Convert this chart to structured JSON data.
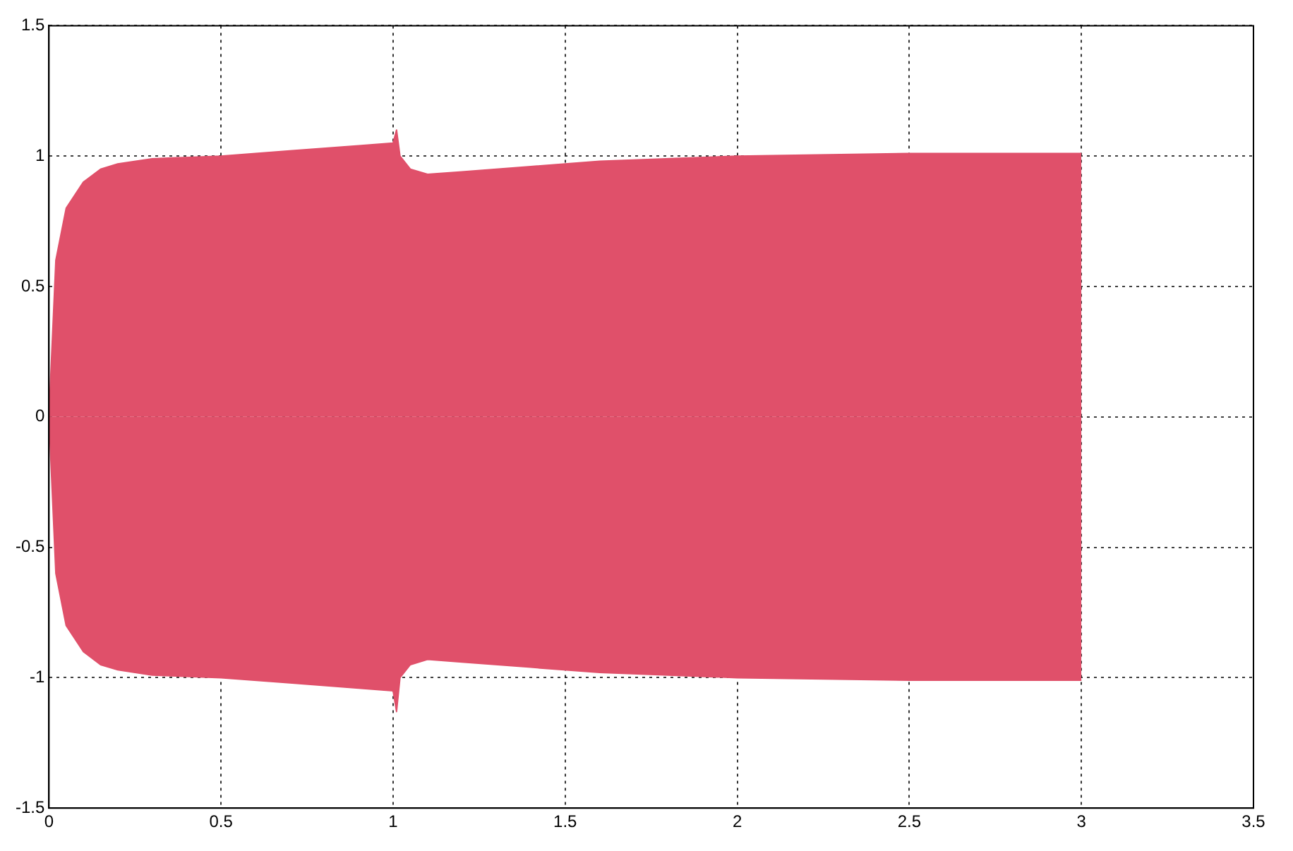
{
  "chart_data": {
    "type": "area",
    "x": [
      0,
      0.02,
      0.05,
      0.1,
      0.15,
      0.2,
      0.3,
      0.5,
      0.7,
      0.9,
      1.0,
      1.01,
      1.02,
      1.05,
      1.1,
      1.2,
      1.4,
      1.6,
      2.0,
      2.5,
      3.0
    ],
    "series": [
      {
        "color": "#e0506a",
        "values": [
          0,
          0.6,
          0.8,
          0.9,
          0.95,
          0.97,
          0.99,
          1.0,
          1.02,
          1.04,
          1.05,
          1.1,
          1.0,
          0.95,
          0.93,
          0.94,
          0.96,
          0.98,
          1.0,
          1.01,
          1.01
        ]
      },
      {
        "color": "#e0506a",
        "values": [
          0,
          -0.6,
          -0.8,
          -0.9,
          -0.95,
          -0.97,
          -0.99,
          -1.0,
          -1.02,
          -1.04,
          -1.05,
          -1.13,
          -1.0,
          -0.95,
          -0.93,
          -0.94,
          -0.96,
          -0.98,
          -1.0,
          -1.01,
          -1.01
        ]
      }
    ],
    "xlim": [
      0,
      3.5
    ],
    "xticks": [
      0,
      0.5,
      1,
      1.5,
      2,
      2.5,
      3,
      3.5
    ],
    "ylim": [
      -1.5,
      1.5
    ],
    "yticks": [
      -1.5,
      -1,
      -0.5,
      0,
      0.5,
      1,
      1.5
    ],
    "grid": true,
    "line_style": "solid"
  }
}
